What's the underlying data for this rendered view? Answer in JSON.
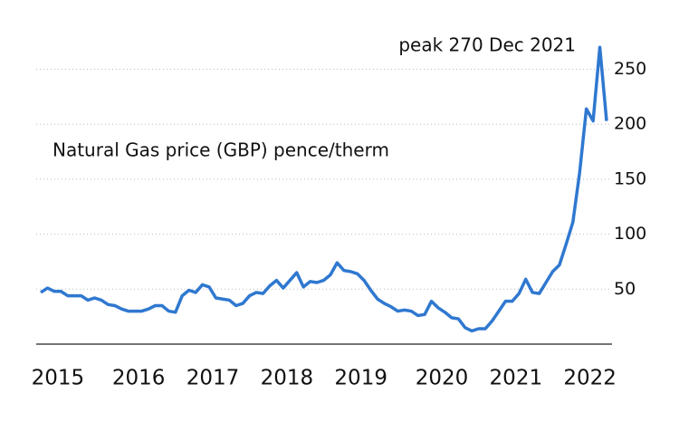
{
  "chart_data": {
    "type": "line",
    "annotation": "peak 270 Dec 2021",
    "categories": [
      null,
      null,
      "2015",
      null,
      null,
      null,
      null,
      null,
      null,
      null,
      null,
      null,
      null,
      null,
      "2016",
      null,
      null,
      null,
      null,
      null,
      null,
      null,
      null,
      null,
      null,
      "2017",
      null,
      null,
      null,
      null,
      null,
      null,
      null,
      null,
      null,
      null,
      "2018",
      null,
      null,
      null,
      null,
      null,
      null,
      null,
      null,
      null,
      null,
      "2019",
      null,
      null,
      null,
      null,
      null,
      null,
      null,
      null,
      null,
      null,
      null,
      "2020",
      null,
      null,
      null,
      null,
      null,
      null,
      null,
      null,
      null,
      null,
      "2021",
      null,
      null,
      null,
      null,
      null,
      null,
      null,
      null,
      null,
      null,
      "2022",
      null,
      null,
      null
    ],
    "series": [
      {
        "name": "Natural Gas price (GBP) pence/therm",
        "color": "#2f78d0",
        "values": [
          47,
          51,
          48,
          48,
          44,
          44,
          44,
          40,
          42,
          40,
          36,
          35,
          32,
          30,
          30,
          30,
          32,
          35,
          35,
          30,
          29,
          44,
          49,
          47,
          54,
          52,
          42,
          41,
          40,
          35,
          37,
          44,
          47,
          46,
          53,
          58,
          51,
          58,
          65,
          52,
          57,
          56,
          58,
          63,
          74,
          67,
          66,
          64,
          58,
          49,
          41,
          37,
          34,
          30,
          31,
          30,
          26,
          27,
          39,
          33,
          29,
          24,
          23,
          15,
          12,
          14,
          14,
          21,
          30,
          39,
          39,
          46,
          59,
          47,
          46,
          56,
          66,
          72,
          91,
          111,
          156,
          214,
          203,
          270,
          203
        ]
      }
    ],
    "ylim": [
      0,
      285
    ],
    "yticks": [
      50,
      100,
      150,
      200,
      250
    ],
    "grid": true
  }
}
